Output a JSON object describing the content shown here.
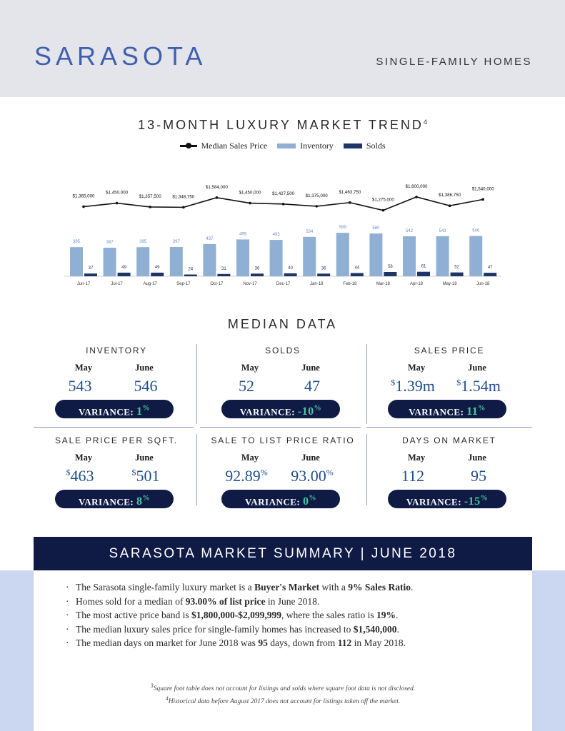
{
  "header": {
    "city": "SARASOTA",
    "property_type": "SINGLE-FAMILY HOMES"
  },
  "chart_section": {
    "title": "13-MONTH LUXURY MARKET TREND",
    "footnote_marker": "4",
    "legend": {
      "median": "Median Sales Price",
      "inventory": "Inventory",
      "solds": "Solds"
    }
  },
  "chart_data": {
    "type": "bar",
    "categories": [
      "Jun-17",
      "Jul-17",
      "Aug-17",
      "Sep-17",
      "Oct-17",
      "Nov-17",
      "Dec-17",
      "Jan-18",
      "Feb-18",
      "Mar-18",
      "Apr-18",
      "May-18",
      "Jun-18"
    ],
    "series": [
      {
        "name": "Inventory",
        "values": [
          395,
          387,
          395,
          397,
          437,
          499,
          493,
          534,
          589,
          580,
          542,
          543,
          546
        ],
        "color": "#8fb0d4"
      },
      {
        "name": "Solds",
        "values": [
          37,
          49,
          49,
          24,
          31,
          36,
          40,
          36,
          44,
          58,
          61,
          52,
          47
        ],
        "color": "#1e3466"
      },
      {
        "name": "Median Sales Price",
        "type": "line",
        "color": "#111111",
        "values": [
          1365000,
          1450000,
          1357500,
          1348750,
          1584000,
          1450000,
          1427500,
          1375000,
          1463750,
          1275000,
          1600000,
          1386750,
          1540000
        ],
        "labels": [
          "$1,365,000",
          "$1,450,000",
          "$1,357,500",
          "$1,348,750",
          "$1,584,000",
          "$1,450,000",
          "$1,427,500",
          "$1,375,000",
          "$1,463,750",
          "$1,275,000",
          "$1,600,000",
          "$1,386,750",
          "$1,540,000"
        ]
      }
    ]
  },
  "median_section": {
    "title": "MEDIAN DATA",
    "variance_label": "VARIANCE:",
    "cells": [
      {
        "label": "INVENTORY",
        "m1": "May",
        "m2": "June",
        "v1": "543",
        "v2": "546",
        "v1_pre": "",
        "v2_pre": "",
        "v1_sup": "",
        "v2_sup": "",
        "variance": "1",
        "variance_sup": "%"
      },
      {
        "label": "SOLDS",
        "m1": "May",
        "m2": "June",
        "v1": "52",
        "v2": "47",
        "v1_pre": "",
        "v2_pre": "",
        "v1_sup": "",
        "v2_sup": "",
        "variance": "-10",
        "variance_sup": "%"
      },
      {
        "label": "SALES PRICE",
        "m1": "May",
        "m2": "June",
        "v1": "1.39m",
        "v2": "1.54m",
        "v1_pre": "$",
        "v2_pre": "$",
        "v1_sup": "",
        "v2_sup": "",
        "variance": "11",
        "variance_sup": "%"
      },
      {
        "label": "SALE PRICE PER SQFT.",
        "m1": "May",
        "m2": "June",
        "v1": "463",
        "v2": "501",
        "v1_pre": "$",
        "v2_pre": "$",
        "v1_sup": "",
        "v2_sup": "",
        "variance": "8",
        "variance_sup": "%"
      },
      {
        "label": "SALE TO LIST PRICE RATIO",
        "m1": "May",
        "m2": "June",
        "v1": "92.89",
        "v2": "93.00",
        "v1_pre": "",
        "v2_pre": "",
        "v1_sup": "%",
        "v2_sup": "%",
        "variance": "0",
        "variance_sup": "%"
      },
      {
        "label": "DAYS ON MARKET",
        "m1": "May",
        "m2": "June",
        "v1": "112",
        "v2": "95",
        "v1_pre": "",
        "v2_pre": "",
        "v1_sup": "",
        "v2_sup": "",
        "variance": "-15",
        "variance_sup": "%"
      }
    ]
  },
  "summary": {
    "title": "SARASOTA MARKET SUMMARY | JUNE 2018",
    "bullets": [
      [
        "The Sarasota single-family luxury market is a ",
        "Buyer's Market",
        " with a ",
        "9% Sales Ratio",
        "."
      ],
      [
        "Homes sold for a median of ",
        "93.00% of list price",
        " in June 2018."
      ],
      [
        "The most active price band is ",
        "$1,800,000-$2,099,999",
        ", where the sales ratio is ",
        "19%",
        "."
      ],
      [
        "The median luxury sales price for single-family homes has increased to ",
        "$1,540,000",
        "."
      ],
      [
        "The median days on market for June 2018 was ",
        "95",
        " days, down from ",
        "112",
        " in May 2018."
      ]
    ]
  },
  "footnotes": [
    {
      "marker": "3",
      "text": "Square foot table does not account for listings and solds where square foot data is not disclosed."
    },
    {
      "marker": "4",
      "text": "Historical data before August 2017 does not account for listings taken off the market."
    }
  ]
}
